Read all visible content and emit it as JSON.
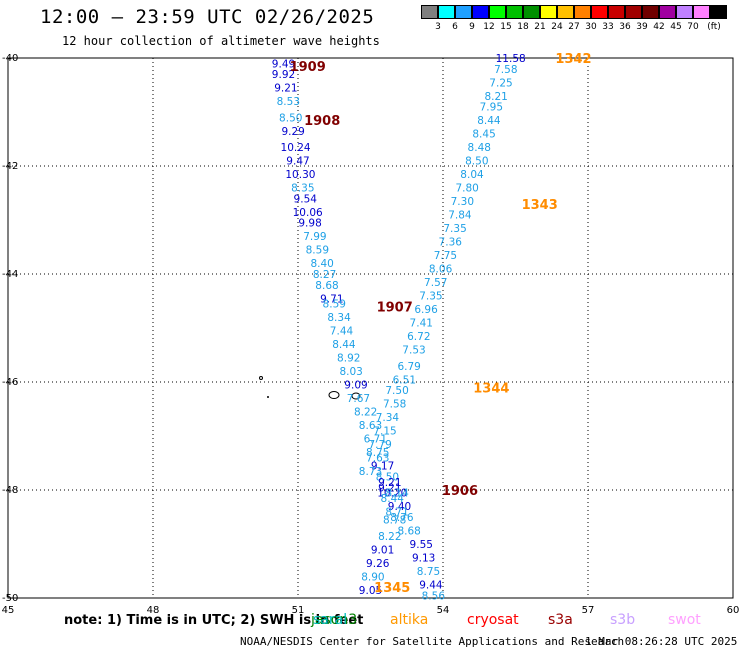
{
  "header": {
    "title": "12:00 – 23:59 UTC 02/26/2025",
    "subtitle": "12 hour collection of altimeter wave heights"
  },
  "colorbar": {
    "colors": [
      "#7f7f7f",
      "#00ffff",
      "#1ea0ff",
      "#0000ff",
      "#00ff00",
      "#00c000",
      "#009000",
      "#ffff00",
      "#ffc000",
      "#ff8000",
      "#ff0000",
      "#c80000",
      "#a00000",
      "#700000",
      "#a000a0",
      "#c080ff",
      "#ff80ff",
      "#000000"
    ],
    "ticks": [
      "3",
      "6",
      "9",
      "12",
      "15",
      "18",
      "21",
      "24",
      "27",
      "30",
      "33",
      "36",
      "39",
      "42",
      "45",
      "70",
      "(ft)"
    ]
  },
  "note": "note:  1) Time is in UTC; 2) SWH is in feet",
  "satellites": [
    {
      "name": "jason3",
      "color": "#008000"
    },
    {
      "name": "saral",
      "color": "#00bfbf"
    },
    {
      "name": "altika",
      "color": "#ff9900"
    },
    {
      "name": "cryosat",
      "color": "#ff0000"
    },
    {
      "name": "s3a",
      "color": "#990000"
    },
    {
      "name": "s3b",
      "color": "#c8a0ff"
    },
    {
      "name": "swot",
      "color": "#ffa0ff"
    }
  ],
  "footer": {
    "left": "NOAA/NESDIS Center for Satellite Applications and Research",
    "right": "1 Mar 08:26:28 UTC 2025"
  },
  "chart_data": {
    "type": "scatter",
    "title": "12:00 – 23:59 UTC 02/26/2025",
    "subtitle": "12 hour collection of altimeter wave heights",
    "xlim": [
      45,
      60
    ],
    "ylim": [
      -50,
      -40
    ],
    "x_ticks": [
      "45",
      "48",
      "51",
      "54",
      "57",
      "60"
    ],
    "y_ticks": [
      "-40",
      "-42",
      "-44",
      "-46",
      "-48",
      "-50"
    ],
    "grid": true,
    "track_labels": [
      {
        "label": "1909",
        "lon": 51.2,
        "lat": -40.15,
        "color": "#800000"
      },
      {
        "label": "1908",
        "lon": 51.5,
        "lat": -41.15,
        "color": "#800000"
      },
      {
        "label": "1907",
        "lon": 53.0,
        "lat": -44.6,
        "color": "#800000"
      },
      {
        "label": "1906",
        "lon": 54.35,
        "lat": -48.0,
        "color": "#800000"
      },
      {
        "label": "1342",
        "lon": 56.7,
        "lat": -40.0,
        "color": "#ff8c00"
      },
      {
        "label": "1343",
        "lon": 56.0,
        "lat": -42.7,
        "color": "#ff8c00"
      },
      {
        "label": "1344",
        "lon": 55.0,
        "lat": -46.1,
        "color": "#ff8c00"
      },
      {
        "label": "1345",
        "lon": 52.95,
        "lat": -49.8,
        "color": "#ff8c00"
      }
    ],
    "series": [
      {
        "name": "track-1",
        "points": [
          [
            50.7,
            -40.1,
            "9.49"
          ],
          [
            50.7,
            -40.3,
            "9.92"
          ],
          [
            50.75,
            -40.55,
            "9.21"
          ],
          [
            50.8,
            -40.8,
            "8.53"
          ],
          [
            50.85,
            -41.1,
            "8.50"
          ],
          [
            50.9,
            -41.35,
            "9.29"
          ],
          [
            50.95,
            -41.65,
            "10.24"
          ],
          [
            51.0,
            -41.9,
            "9.47"
          ],
          [
            51.05,
            -42.15,
            "10.30"
          ],
          [
            51.1,
            -42.4,
            "8.35"
          ],
          [
            51.15,
            -42.6,
            "9.54"
          ],
          [
            51.2,
            -42.85,
            "10.06"
          ],
          [
            51.25,
            -43.05,
            "9.98"
          ],
          [
            51.35,
            -43.3,
            "7.99"
          ],
          [
            51.4,
            -43.55,
            "8.59"
          ],
          [
            51.5,
            -43.8,
            "8.40"
          ],
          [
            51.55,
            -44.0,
            "8.27"
          ],
          [
            51.6,
            -44.2,
            "8.68"
          ],
          [
            51.7,
            -44.45,
            "9.71"
          ],
          [
            51.75,
            -44.55,
            "8.59"
          ],
          [
            51.85,
            -44.8,
            "8.34"
          ],
          [
            51.9,
            -45.05,
            "7.44"
          ],
          [
            51.95,
            -45.3,
            "8.44"
          ],
          [
            52.05,
            -45.55,
            "8.92"
          ],
          [
            52.1,
            -45.8,
            "8.03"
          ],
          [
            52.2,
            -46.05,
            "9.09"
          ],
          [
            52.25,
            -46.3,
            "7.67"
          ],
          [
            52.4,
            -46.55,
            "8.22"
          ],
          [
            52.5,
            -46.8,
            "8.63"
          ],
          [
            52.6,
            -47.05,
            "6.71"
          ],
          [
            52.65,
            -47.3,
            "8.75"
          ],
          [
            52.75,
            -47.55,
            "9.17"
          ],
          [
            52.85,
            -47.75,
            "8.50"
          ],
          [
            52.9,
            -47.95,
            "9.21"
          ],
          [
            52.95,
            -48.05,
            "10.20"
          ],
          [
            52.95,
            -48.15,
            "8.44"
          ],
          [
            53.1,
            -48.3,
            "9.40"
          ],
          [
            53.05,
            -48.4,
            "8.71"
          ],
          [
            53.0,
            -48.55,
            "8.78"
          ],
          [
            52.9,
            -48.85,
            "8.22"
          ],
          [
            52.75,
            -49.1,
            "9.01"
          ],
          [
            52.65,
            -49.35,
            "9.26"
          ],
          [
            52.55,
            -49.6,
            "8.90"
          ],
          [
            52.5,
            -49.85,
            "9.05"
          ]
        ]
      },
      {
        "name": "track-2",
        "points": [
          [
            55.4,
            -40.0,
            "11.58"
          ],
          [
            55.3,
            -40.2,
            "7.58"
          ],
          [
            55.2,
            -40.45,
            "7.25"
          ],
          [
            55.1,
            -40.7,
            "8.21"
          ],
          [
            55.0,
            -40.9,
            "7.95"
          ],
          [
            54.95,
            -41.15,
            "8.44"
          ],
          [
            54.85,
            -41.4,
            "8.45"
          ],
          [
            54.75,
            -41.65,
            "8.48"
          ],
          [
            54.7,
            -41.9,
            "8.50"
          ],
          [
            54.6,
            -42.15,
            "8.04"
          ],
          [
            54.5,
            -42.4,
            "7.80"
          ],
          [
            54.4,
            -42.65,
            "7.30"
          ],
          [
            54.35,
            -42.9,
            "7.84"
          ],
          [
            54.25,
            -43.15,
            "7.35"
          ],
          [
            54.15,
            -43.4,
            "7.36"
          ],
          [
            54.05,
            -43.65,
            "7.75"
          ],
          [
            53.95,
            -43.9,
            "8.06"
          ],
          [
            53.85,
            -44.15,
            "7.57"
          ],
          [
            53.75,
            -44.4,
            "7.35"
          ],
          [
            53.65,
            -44.65,
            "6.96"
          ],
          [
            53.55,
            -44.9,
            "7.41"
          ],
          [
            53.5,
            -45.15,
            "6.72"
          ],
          [
            53.4,
            -45.4,
            "7.53"
          ],
          [
            53.3,
            -45.7,
            "6.79"
          ],
          [
            53.2,
            -45.95,
            "6.51"
          ],
          [
            53.05,
            -46.15,
            "7.50"
          ],
          [
            53.0,
            -46.4,
            "7.58"
          ],
          [
            52.85,
            -46.65,
            "7.34"
          ],
          [
            52.8,
            -46.9,
            "7.15"
          ],
          [
            52.7,
            -47.15,
            "7.79"
          ],
          [
            52.65,
            -47.4,
            "7.63"
          ],
          [
            52.5,
            -47.65,
            "8.73"
          ],
          [
            52.9,
            -47.85,
            "9.21"
          ],
          [
            53.05,
            -48.05,
            "8.14"
          ],
          [
            53.15,
            -48.5,
            "8.76"
          ],
          [
            53.3,
            -48.75,
            "8.68"
          ],
          [
            53.55,
            -49.0,
            "9.55"
          ],
          [
            53.6,
            -49.25,
            "9.13"
          ],
          [
            53.7,
            -49.5,
            "8.75"
          ],
          [
            53.75,
            -49.75,
            "9.44"
          ],
          [
            53.8,
            -49.95,
            "8.56"
          ]
        ]
      }
    ]
  }
}
